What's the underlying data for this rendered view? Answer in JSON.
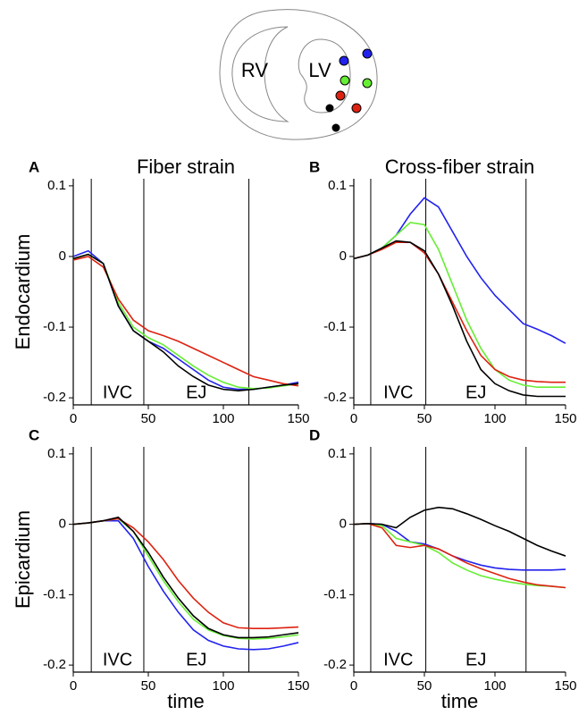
{
  "diagram": {
    "rv_label": "RV",
    "lv_label": "LV"
  },
  "chart_data": [
    {
      "type": "line",
      "panel_label": "A",
      "title": "Fiber strain",
      "y_label": "Endocardium",
      "x": [
        0,
        10,
        20,
        30,
        40,
        50,
        60,
        70,
        80,
        90,
        100,
        110,
        120,
        130,
        140,
        150
      ],
      "xlim": [
        0,
        150
      ],
      "xticks": [
        0,
        50,
        100,
        150
      ],
      "ylim": [
        -0.21,
        0.11
      ],
      "yticks": [
        0.1,
        0,
        -0.1,
        -0.2
      ],
      "vlines": [
        12,
        47,
        117
      ],
      "annotations": [
        "IVC",
        "EJ"
      ],
      "series": [
        {
          "color": "#2222ee",
          "values": [
            0,
            0.008,
            -0.01,
            -0.07,
            -0.105,
            -0.12,
            -0.13,
            -0.145,
            -0.16,
            -0.175,
            -0.185,
            -0.188,
            -0.188,
            -0.185,
            -0.182,
            -0.178
          ]
        },
        {
          "color": "#66ee33",
          "values": [
            -0.003,
            0.003,
            -0.01,
            -0.065,
            -0.1,
            -0.115,
            -0.125,
            -0.14,
            -0.155,
            -0.168,
            -0.178,
            -0.185,
            -0.187,
            -0.186,
            -0.183,
            -0.18
          ]
        },
        {
          "color": "#dd2211",
          "values": [
            -0.005,
            0,
            -0.015,
            -0.06,
            -0.09,
            -0.105,
            -0.112,
            -0.12,
            -0.13,
            -0.14,
            -0.15,
            -0.16,
            -0.17,
            -0.175,
            -0.18,
            -0.183
          ]
        },
        {
          "color": "#000000",
          "values": [
            -0.003,
            0.003,
            -0.01,
            -0.07,
            -0.105,
            -0.12,
            -0.135,
            -0.155,
            -0.17,
            -0.182,
            -0.188,
            -0.19,
            -0.188,
            -0.185,
            -0.182,
            -0.18
          ]
        }
      ]
    },
    {
      "type": "line",
      "panel_label": "B",
      "title": "Cross-fiber strain",
      "x": [
        0,
        10,
        20,
        30,
        40,
        50,
        60,
        70,
        80,
        90,
        100,
        110,
        120,
        130,
        140,
        150
      ],
      "xlim": [
        0,
        150
      ],
      "xticks": [
        0,
        50,
        100,
        150
      ],
      "ylim": [
        -0.21,
        0.11
      ],
      "yticks": [
        0.1,
        0,
        -0.1,
        -0.2
      ],
      "vlines": [
        12,
        51,
        122
      ],
      "annotations": [
        "IVC",
        "EJ"
      ],
      "series": [
        {
          "color": "#2222ee",
          "values": [
            -0.003,
            0.002,
            0.012,
            0.03,
            0.06,
            0.083,
            0.07,
            0.035,
            0,
            -0.03,
            -0.055,
            -0.075,
            -0.095,
            -0.103,
            -0.112,
            -0.123
          ]
        },
        {
          "color": "#66ee33",
          "values": [
            -0.003,
            0.002,
            0.012,
            0.03,
            0.048,
            0.045,
            0.01,
            -0.04,
            -0.09,
            -0.13,
            -0.16,
            -0.175,
            -0.182,
            -0.185,
            -0.185,
            -0.185
          ]
        },
        {
          "color": "#dd2211",
          "values": [
            -0.003,
            0.002,
            0.01,
            0.02,
            0.02,
            0.005,
            -0.025,
            -0.065,
            -0.105,
            -0.14,
            -0.16,
            -0.17,
            -0.175,
            -0.177,
            -0.178,
            -0.178
          ]
        },
        {
          "color": "#000000",
          "values": [
            -0.003,
            0.002,
            0.012,
            0.022,
            0.02,
            0.008,
            -0.025,
            -0.07,
            -0.12,
            -0.16,
            -0.18,
            -0.19,
            -0.196,
            -0.198,
            -0.198,
            -0.198
          ]
        }
      ]
    },
    {
      "type": "line",
      "panel_label": "C",
      "y_label": "Epicardium",
      "x_label": "time",
      "x": [
        0,
        10,
        20,
        30,
        40,
        50,
        60,
        70,
        80,
        90,
        100,
        110,
        120,
        130,
        140,
        150
      ],
      "xlim": [
        0,
        150
      ],
      "xticks": [
        0,
        50,
        100,
        150
      ],
      "ylim": [
        -0.21,
        0.11
      ],
      "yticks": [
        0.1,
        0,
        -0.1,
        -0.2
      ],
      "vlines": [
        12,
        47,
        117
      ],
      "annotations": [
        "IVC",
        "EJ"
      ],
      "series": [
        {
          "color": "#2222ee",
          "values": [
            0,
            0.002,
            0.005,
            0.005,
            -0.02,
            -0.06,
            -0.095,
            -0.125,
            -0.15,
            -0.165,
            -0.173,
            -0.177,
            -0.178,
            -0.177,
            -0.173,
            -0.168
          ]
        },
        {
          "color": "#66ee33",
          "values": [
            0,
            0.002,
            0.005,
            0.008,
            -0.01,
            -0.045,
            -0.08,
            -0.11,
            -0.135,
            -0.15,
            -0.158,
            -0.162,
            -0.163,
            -0.162,
            -0.16,
            -0.157
          ]
        },
        {
          "color": "#dd2211",
          "values": [
            0,
            0.002,
            0.005,
            0.008,
            -0.005,
            -0.025,
            -0.05,
            -0.08,
            -0.105,
            -0.125,
            -0.14,
            -0.147,
            -0.148,
            -0.148,
            -0.147,
            -0.146
          ]
        },
        {
          "color": "#000000",
          "values": [
            0,
            0.002,
            0.005,
            0.01,
            -0.01,
            -0.04,
            -0.075,
            -0.105,
            -0.13,
            -0.148,
            -0.157,
            -0.161,
            -0.161,
            -0.16,
            -0.157,
            -0.154
          ]
        }
      ]
    },
    {
      "type": "line",
      "panel_label": "D",
      "x_label": "time",
      "x": [
        0,
        10,
        20,
        30,
        40,
        50,
        60,
        70,
        80,
        90,
        100,
        110,
        120,
        130,
        140,
        150
      ],
      "xlim": [
        0,
        150
      ],
      "xticks": [
        0,
        50,
        100,
        150
      ],
      "ylim": [
        -0.21,
        0.11
      ],
      "yticks": [
        0.1,
        0,
        -0.1,
        -0.2
      ],
      "vlines": [
        12,
        51,
        122
      ],
      "annotations": [
        "IVC",
        "EJ"
      ],
      "series": [
        {
          "color": "#2222ee",
          "values": [
            0,
            0.001,
            0,
            -0.01,
            -0.025,
            -0.028,
            -0.035,
            -0.045,
            -0.052,
            -0.058,
            -0.062,
            -0.064,
            -0.065,
            -0.065,
            -0.065,
            -0.064
          ]
        },
        {
          "color": "#66ee33",
          "values": [
            0,
            0.001,
            -0.002,
            -0.02,
            -0.025,
            -0.03,
            -0.04,
            -0.055,
            -0.065,
            -0.073,
            -0.078,
            -0.082,
            -0.085,
            -0.087,
            -0.088,
            -0.09
          ]
        },
        {
          "color": "#dd2211",
          "values": [
            0,
            0.001,
            -0.005,
            -0.03,
            -0.033,
            -0.03,
            -0.035,
            -0.045,
            -0.055,
            -0.063,
            -0.07,
            -0.077,
            -0.082,
            -0.086,
            -0.088,
            -0.09
          ]
        },
        {
          "color": "#000000",
          "values": [
            0,
            0.001,
            0,
            -0.005,
            0.01,
            0.02,
            0.024,
            0.022,
            0.015,
            0.007,
            -0.002,
            -0.01,
            -0.02,
            -0.03,
            -0.038,
            -0.045
          ]
        }
      ]
    }
  ]
}
